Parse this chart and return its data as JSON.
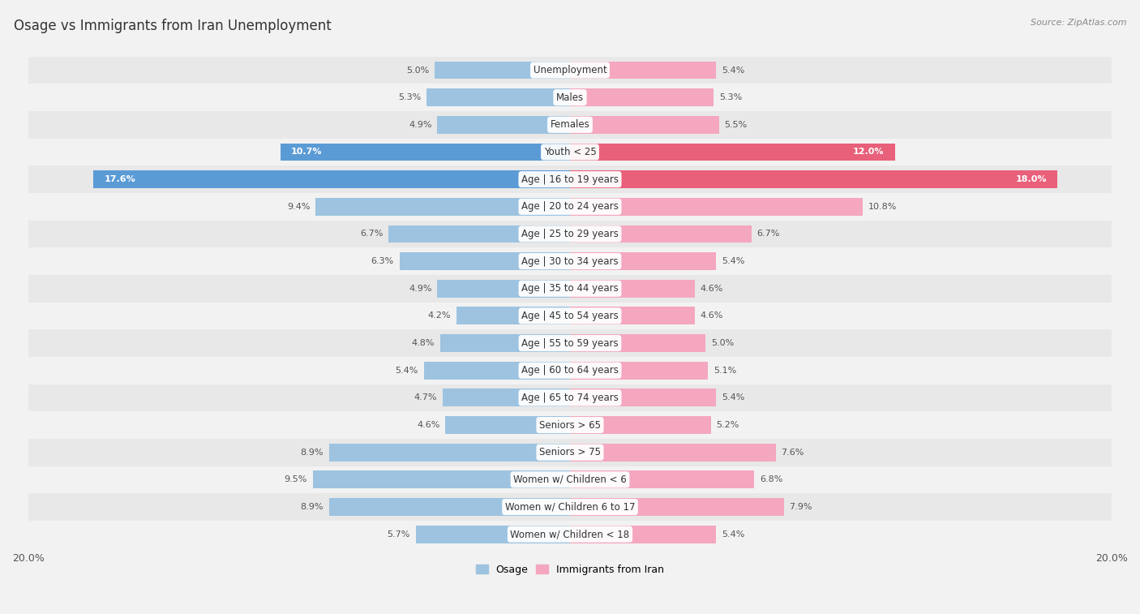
{
  "title": "Osage vs Immigrants from Iran Unemployment",
  "source": "Source: ZipAtlas.com",
  "categories": [
    "Unemployment",
    "Males",
    "Females",
    "Youth < 25",
    "Age | 16 to 19 years",
    "Age | 20 to 24 years",
    "Age | 25 to 29 years",
    "Age | 30 to 34 years",
    "Age | 35 to 44 years",
    "Age | 45 to 54 years",
    "Age | 55 to 59 years",
    "Age | 60 to 64 years",
    "Age | 65 to 74 years",
    "Seniors > 65",
    "Seniors > 75",
    "Women w/ Children < 6",
    "Women w/ Children 6 to 17",
    "Women w/ Children < 18"
  ],
  "osage_values": [
    5.0,
    5.3,
    4.9,
    10.7,
    17.6,
    9.4,
    6.7,
    6.3,
    4.9,
    4.2,
    4.8,
    5.4,
    4.7,
    4.6,
    8.9,
    9.5,
    8.9,
    5.7
  ],
  "iran_values": [
    5.4,
    5.3,
    5.5,
    12.0,
    18.0,
    10.8,
    6.7,
    5.4,
    4.6,
    4.6,
    5.0,
    5.1,
    5.4,
    5.2,
    7.6,
    6.8,
    7.9,
    5.4
  ],
  "osage_color": "#9dc3e0",
  "iran_color": "#f4a7be",
  "osage_highlight_color": "#5b9bd5",
  "iran_highlight_color": "#e8607a",
  "max_value": 20.0,
  "background_color": "#f2f2f2",
  "row_color_light": "#f2f2f2",
  "row_color_dark": "#e8e8e8",
  "label_color": "#444444",
  "value_color": "#555555",
  "highlight_rows": [
    3,
    4
  ],
  "title_fontsize": 12,
  "label_fontsize": 8.5,
  "value_fontsize": 8.0
}
